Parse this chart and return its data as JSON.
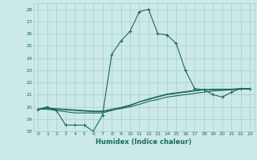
{
  "xlabel": "Humidex (Indice chaleur)",
  "background_color": "#cce9e9",
  "line_color": "#1a6b5a",
  "grid_color": "#aacccc",
  "xlim": [
    -0.5,
    23.5
  ],
  "ylim": [
    18,
    28.5
  ],
  "yticks": [
    18,
    19,
    20,
    21,
    22,
    23,
    24,
    25,
    26,
    27,
    28
  ],
  "xticks": [
    0,
    1,
    2,
    3,
    4,
    5,
    6,
    7,
    8,
    9,
    10,
    11,
    12,
    13,
    14,
    15,
    16,
    17,
    18,
    19,
    20,
    21,
    22,
    23
  ],
  "series": [
    {
      "x": [
        0,
        1,
        2,
        3,
        4,
        5,
        6,
        7,
        8,
        9,
        10,
        11,
        12,
        13,
        14,
        15,
        16,
        17,
        18,
        19,
        20,
        21,
        22,
        23
      ],
      "y": [
        19.8,
        20.0,
        19.7,
        18.5,
        18.5,
        18.5,
        18.0,
        19.3,
        24.3,
        25.4,
        26.2,
        27.8,
        28.0,
        26.0,
        25.9,
        25.2,
        23.0,
        21.5,
        21.4,
        21.0,
        20.8,
        21.2,
        21.5,
        21.5
      ],
      "marker": "+"
    },
    {
      "x": [
        0,
        1,
        2,
        3,
        4,
        5,
        6,
        7,
        8,
        9,
        10,
        11,
        12,
        13,
        14,
        15,
        16,
        17,
        18,
        19,
        20,
        21,
        22,
        23
      ],
      "y": [
        19.8,
        19.8,
        19.7,
        19.6,
        19.5,
        19.5,
        19.5,
        19.5,
        19.7,
        19.9,
        20.1,
        20.4,
        20.6,
        20.8,
        21.0,
        21.1,
        21.2,
        21.3,
        21.4,
        21.4,
        21.4,
        21.4,
        21.5,
        21.5
      ],
      "marker": null
    },
    {
      "x": [
        0,
        1,
        2,
        3,
        4,
        5,
        6,
        7,
        8,
        9,
        10,
        11,
        12,
        13,
        14,
        15,
        16,
        17,
        18,
        19,
        20,
        21,
        22,
        23
      ],
      "y": [
        19.8,
        19.85,
        19.8,
        19.75,
        19.7,
        19.65,
        19.6,
        19.6,
        19.75,
        19.85,
        20.0,
        20.2,
        20.45,
        20.6,
        20.8,
        20.9,
        21.0,
        21.1,
        21.2,
        21.3,
        21.35,
        21.4,
        21.45,
        21.45
      ],
      "marker": null
    },
    {
      "x": [
        0,
        1,
        2,
        3,
        4,
        5,
        6,
        7,
        8,
        9,
        10,
        11,
        12,
        13,
        14,
        15,
        16,
        17,
        18,
        19,
        20,
        21,
        22,
        23
      ],
      "y": [
        19.8,
        19.9,
        19.85,
        19.8,
        19.75,
        19.7,
        19.65,
        19.65,
        19.8,
        19.95,
        20.15,
        20.4,
        20.65,
        20.85,
        21.05,
        21.15,
        21.25,
        21.35,
        21.4,
        21.45,
        21.45,
        21.45,
        21.5,
        21.5
      ],
      "marker": null
    }
  ]
}
